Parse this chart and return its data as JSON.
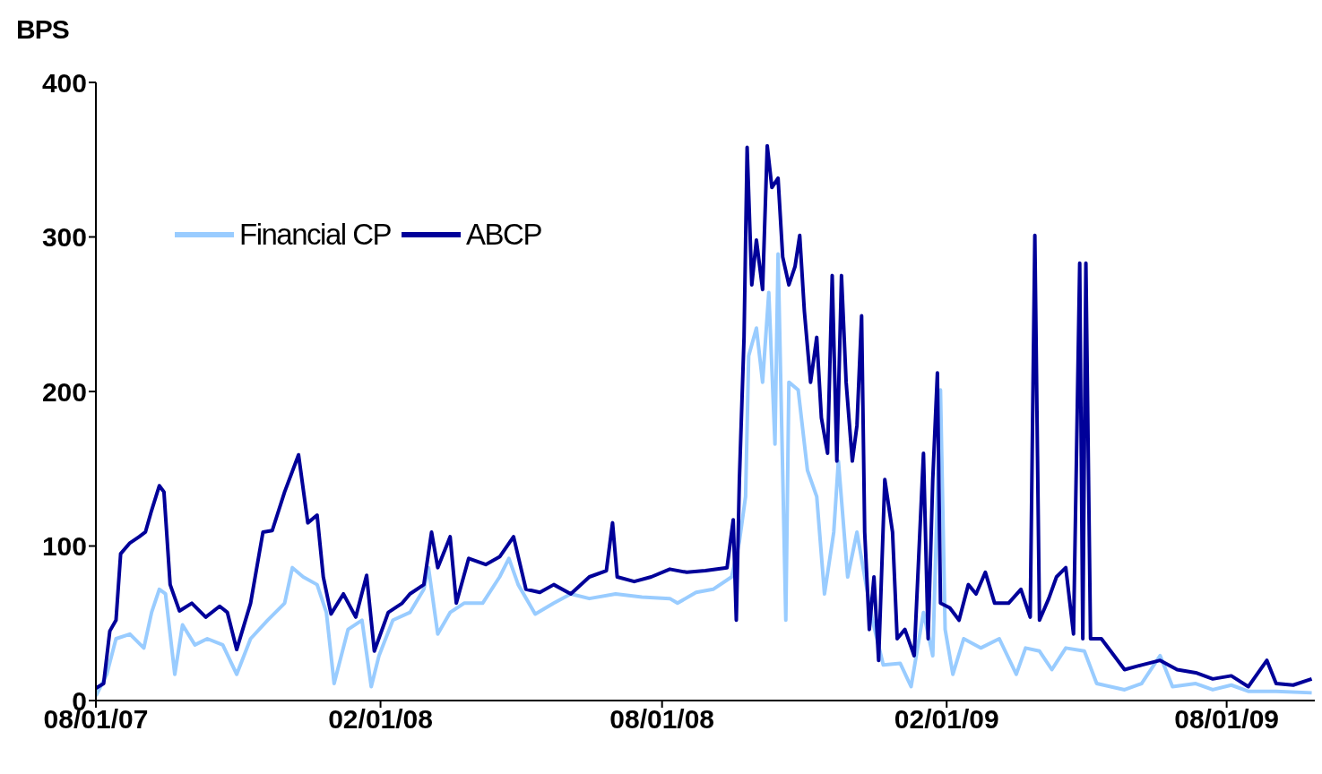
{
  "chart_data": {
    "type": "line",
    "ylabel": "BPS",
    "ylim": [
      0,
      400
    ],
    "yticks": [
      0,
      100,
      200,
      300,
      400
    ],
    "xlim": [
      "2007-08-01",
      "2009-09-27"
    ],
    "xticks": [
      {
        "value": "2007-08-01",
        "label": "08/01/07"
      },
      {
        "value": "2008-02-01",
        "label": "02/01/08"
      },
      {
        "value": "2008-08-01",
        "label": "08/01/08"
      },
      {
        "value": "2009-02-01",
        "label": "02/01/09"
      },
      {
        "value": "2009-08-01",
        "label": "08/01/09"
      }
    ],
    "grid": false,
    "legend": "top left",
    "marker": "none",
    "line_style": "solid",
    "series": [
      {
        "name": "Financial CP",
        "color": "#99ccff",
        "x": [
          "2007-08-01",
          "2007-08-08",
          "2007-08-14",
          "2007-08-23",
          "2007-09-01",
          "2007-09-06",
          "2007-09-11",
          "2007-09-15",
          "2007-09-21",
          "2007-09-26",
          "2007-10-04",
          "2007-10-12",
          "2007-10-22",
          "2007-10-31",
          "2007-11-09",
          "2007-11-20",
          "2007-12-01",
          "2007-12-06",
          "2007-12-13",
          "2007-12-22",
          "2007-12-28",
          "2008-01-02",
          "2008-01-11",
          "2008-01-20",
          "2008-01-26",
          "2008-01-31",
          "2008-02-09",
          "2008-02-20",
          "2008-02-29",
          "2008-03-03",
          "2008-03-09",
          "2008-03-17",
          "2008-03-26",
          "2008-04-07",
          "2008-04-18",
          "2008-04-24",
          "2008-04-30",
          "2008-05-11",
          "2008-05-23",
          "2008-06-03",
          "2008-06-15",
          "2008-07-02",
          "2008-07-19",
          "2008-08-06",
          "2008-08-11",
          "2008-08-23",
          "2008-09-03",
          "2008-09-15",
          "2008-09-20",
          "2008-09-24",
          "2008-09-26",
          "2008-10-01",
          "2008-10-05",
          "2008-10-09",
          "2008-10-13",
          "2008-10-15",
          "2008-10-20",
          "2008-10-22",
          "2008-10-28",
          "2008-11-03",
          "2008-11-09",
          "2008-11-14",
          "2008-11-20",
          "2008-11-23",
          "2008-11-29",
          "2008-12-05",
          "2008-12-10",
          "2008-12-15",
          "2008-12-22",
          "2009-01-02",
          "2009-01-09",
          "2009-01-17",
          "2009-01-23",
          "2009-01-28",
          "2009-01-31",
          "2009-02-05",
          "2009-02-12",
          "2009-02-23",
          "2009-03-07",
          "2009-03-18",
          "2009-03-24",
          "2009-04-02",
          "2009-04-10",
          "2009-04-19",
          "2009-05-01",
          "2009-05-09",
          "2009-05-27",
          "2009-06-07",
          "2009-06-19",
          "2009-06-27",
          "2009-07-12",
          "2009-07-23",
          "2009-08-04",
          "2009-08-15",
          "2009-09-02",
          "2009-09-25"
        ],
        "values": [
          3,
          17,
          40,
          43,
          34,
          57,
          72,
          69,
          17,
          49,
          36,
          40,
          36,
          17,
          40,
          52,
          63,
          86,
          80,
          75,
          57,
          11,
          46,
          52,
          9,
          29,
          52,
          57,
          72,
          86,
          43,
          57,
          63,
          63,
          80,
          92,
          75,
          56,
          63,
          69,
          66,
          69,
          67,
          66,
          63,
          70,
          72,
          80,
          103,
          132,
          223,
          241,
          206,
          264,
          166,
          289,
          52,
          206,
          201,
          149,
          132,
          69,
          109,
          155,
          80,
          109,
          80,
          52,
          23,
          24,
          9,
          57,
          29,
          201,
          46,
          17,
          40,
          34,
          40,
          17,
          34,
          32,
          20,
          34,
          32,
          11,
          7,
          11,
          29,
          9,
          11,
          7,
          10,
          6,
          6,
          5
        ]
      },
      {
        "name": "ABCP",
        "color": "#000099",
        "x": [
          "2007-08-01",
          "2007-08-06",
          "2007-08-10",
          "2007-08-14",
          "2007-08-17",
          "2007-08-23",
          "2007-08-29",
          "2007-09-02",
          "2007-09-06",
          "2007-09-11",
          "2007-09-14",
          "2007-09-18",
          "2007-09-24",
          "2007-10-02",
          "2007-10-11",
          "2007-10-20",
          "2007-10-25",
          "2007-10-31",
          "2007-11-09",
          "2007-11-17",
          "2007-11-23",
          "2007-12-01",
          "2007-12-10",
          "2007-12-16",
          "2007-12-22",
          "2007-12-26",
          "2007-12-31",
          "2008-01-08",
          "2008-01-16",
          "2008-01-23",
          "2008-01-28",
          "2008-02-06",
          "2008-02-15",
          "2008-02-20",
          "2008-02-29",
          "2008-03-05",
          "2008-03-09",
          "2008-03-17",
          "2008-03-21",
          "2008-03-29",
          "2008-04-09",
          "2008-04-18",
          "2008-04-27",
          "2008-05-05",
          "2008-05-14",
          "2008-05-23",
          "2008-06-03",
          "2008-06-15",
          "2008-06-26",
          "2008-06-30",
          "2008-07-03",
          "2008-07-14",
          "2008-07-25",
          "2008-08-06",
          "2008-08-17",
          "2008-08-29",
          "2008-09-12",
          "2008-09-16",
          "2008-09-18",
          "2008-09-20",
          "2008-09-23",
          "2008-09-25",
          "2008-09-28",
          "2008-10-01",
          "2008-10-05",
          "2008-10-08",
          "2008-10-11",
          "2008-10-15",
          "2008-10-18",
          "2008-10-22",
          "2008-10-26",
          "2008-10-29",
          "2008-11-01",
          "2008-11-05",
          "2008-11-09",
          "2008-11-12",
          "2008-11-16",
          "2008-11-19",
          "2008-11-22",
          "2008-11-25",
          "2008-11-28",
          "2008-12-02",
          "2008-12-05",
          "2008-12-08",
          "2008-12-10",
          "2008-12-13",
          "2008-12-16",
          "2008-12-19",
          "2008-12-23",
          "2008-12-28",
          "2008-12-31",
          "2009-01-05",
          "2009-01-11",
          "2009-01-17",
          "2009-01-20",
          "2009-01-23",
          "2009-01-26",
          "2009-01-28",
          "2009-02-03",
          "2009-02-09",
          "2009-02-15",
          "2009-02-20",
          "2009-02-26",
          "2009-03-04",
          "2009-03-13",
          "2009-03-21",
          "2009-03-27",
          "2009-03-30",
          "2009-04-02",
          "2009-04-08",
          "2009-04-13",
          "2009-04-19",
          "2009-04-24",
          "2009-04-28",
          "2009-04-30",
          "2009-05-02",
          "2009-05-05",
          "2009-05-12",
          "2009-05-18",
          "2009-05-27",
          "2009-06-07",
          "2009-06-19",
          "2009-06-30",
          "2009-07-12",
          "2009-07-23",
          "2009-08-04",
          "2009-08-15",
          "2009-08-27",
          "2009-09-02",
          "2009-09-13",
          "2009-09-25"
        ],
        "values": [
          8,
          11,
          45,
          52,
          95,
          102,
          106,
          109,
          123,
          139,
          135,
          75,
          58,
          63,
          54,
          61,
          57,
          33,
          63,
          109,
          110,
          135,
          159,
          115,
          120,
          80,
          56,
          69,
          54,
          81,
          32,
          57,
          63,
          69,
          75,
          109,
          86,
          106,
          63,
          92,
          88,
          93,
          106,
          72,
          70,
          75,
          69,
          80,
          84,
          115,
          80,
          77,
          80,
          85,
          83,
          84,
          86,
          117,
          52,
          143,
          235,
          358,
          269,
          298,
          266,
          359,
          332,
          338,
          287,
          269,
          281,
          301,
          252,
          206,
          235,
          183,
          160,
          275,
          155,
          275,
          206,
          155,
          178,
          249,
          109,
          46,
          80,
          26,
          143,
          109,
          40,
          46,
          29,
          160,
          40,
          143,
          212,
          63,
          60,
          52,
          75,
          69,
          83,
          63,
          63,
          72,
          54,
          301,
          52,
          66,
          80,
          86,
          43,
          283,
          40,
          283,
          40,
          40,
          32,
          20,
          23,
          26,
          20,
          18,
          14,
          16,
          9,
          26,
          11,
          10,
          14
        ]
      }
    ]
  }
}
